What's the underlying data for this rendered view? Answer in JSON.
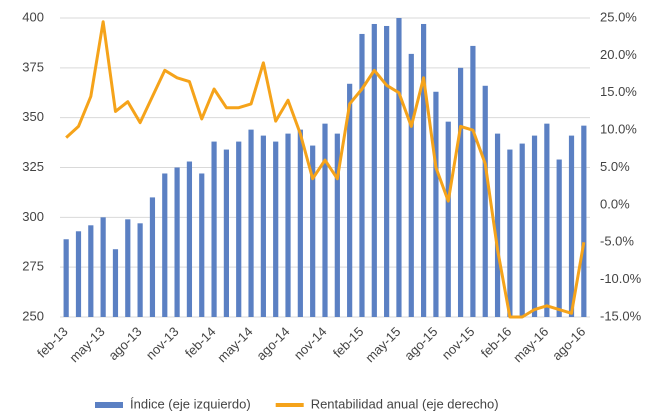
{
  "chart_data": {
    "type": "bar-line",
    "categories": [
      "feb-13",
      null,
      null,
      "may-13",
      null,
      null,
      "ago-13",
      null,
      null,
      "nov-13",
      null,
      null,
      "feb-14",
      null,
      null,
      "may-14",
      null,
      null,
      "ago-14",
      null,
      null,
      "nov-14",
      null,
      null,
      "feb-15",
      null,
      null,
      "may-15",
      null,
      null,
      "ago-15",
      null,
      null,
      "nov-15",
      null,
      null,
      "feb-16",
      null,
      null,
      "may-16",
      null,
      null,
      "ago-16"
    ],
    "series": [
      {
        "name": "Índice (eje izquierdo)",
        "color": "#5b80c3",
        "type": "bar",
        "values": [
          289,
          293,
          296,
          300,
          284,
          299,
          297,
          310,
          322,
          325,
          328,
          322,
          338,
          334,
          338,
          344,
          341,
          338,
          342,
          344,
          336,
          347,
          342,
          367,
          392,
          397,
          396,
          400,
          382,
          397,
          363,
          348,
          375,
          386,
          366,
          342,
          334,
          337,
          341,
          347,
          329,
          341,
          346
        ]
      },
      {
        "name": "Rentabilidad anual (eje derecho)",
        "color": "#f5a31a",
        "type": "line",
        "axis": "y2",
        "values": [
          9,
          10.5,
          14.5,
          24.5,
          12.5,
          13.8,
          11,
          14.5,
          18,
          17,
          16.5,
          11.5,
          15.5,
          13,
          13,
          13.5,
          19,
          11.2,
          14,
          9.5,
          3.5,
          6,
          3.5,
          13.5,
          15.5,
          18,
          16,
          15,
          10.5,
          17,
          5,
          0.5,
          10.5,
          10,
          5.5,
          -6,
          -15,
          -15,
          -14,
          -13.5,
          -14,
          -14.5,
          -5
        ]
      }
    ],
    "ylim": [
      250,
      400
    ],
    "yticks": [
      250,
      275,
      300,
      325,
      350,
      375,
      400
    ],
    "y2lim": [
      -15,
      25
    ],
    "y2ticks": [
      {
        "value": -15,
        "label": "-15.0%"
      },
      {
        "value": -10,
        "label": "-10.0%"
      },
      {
        "value": -5,
        "label": "-5.0%"
      },
      {
        "value": 0,
        "label": "0.0%"
      },
      {
        "value": 5,
        "label": "5.0%"
      },
      {
        "value": 10,
        "label": "10.0%"
      },
      {
        "value": 15,
        "label": "15.0%"
      },
      {
        "value": 20,
        "label": "20.0%"
      },
      {
        "value": 25,
        "label": "25.0%"
      }
    ],
    "grid": true,
    "legend": "bottom"
  }
}
